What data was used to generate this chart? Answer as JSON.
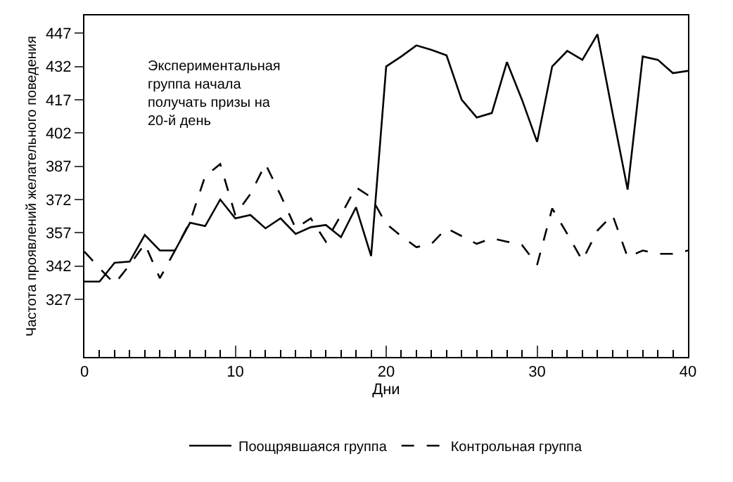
{
  "chart_data": {
    "type": "line",
    "xlabel": "Дни",
    "ylabel": "Частота проявлений желательного поведения",
    "x": [
      0,
      1,
      2,
      3,
      4,
      5,
      6,
      7,
      8,
      9,
      10,
      11,
      12,
      13,
      14,
      15,
      16,
      17,
      18,
      19,
      20,
      21,
      22,
      23,
      24,
      25,
      26,
      27,
      28,
      29,
      30,
      31,
      32,
      33,
      34,
      35,
      36,
      37,
      38,
      39,
      40
    ],
    "series": [
      {
        "name": "Поощрявшаяся группа",
        "color": "#000000",
        "line_style": "solid",
        "values": [
          335,
          335,
          343.5,
          344,
          356,
          349,
          349,
          361.5,
          360,
          372,
          363.5,
          365,
          359,
          363.5,
          356.5,
          359.5,
          360.5,
          355,
          368.5,
          346.5,
          432,
          436.5,
          441.5,
          439.5,
          437,
          417,
          409,
          411,
          434,
          417,
          398,
          432,
          439,
          435,
          446.5,
          411,
          376.5,
          436.5,
          435,
          429,
          430
        ]
      },
      {
        "name": "Контрольная группа",
        "color": "#000000",
        "line_style": "dashed",
        "values": [
          348.5,
          341,
          334,
          342.5,
          352,
          336.5,
          349,
          362,
          382.5,
          388,
          365,
          374.5,
          388,
          374,
          359,
          363.5,
          353,
          365,
          377.5,
          373,
          361,
          355.5,
          350.5,
          352,
          359,
          355.5,
          352,
          354.5,
          353,
          351.5,
          342.5,
          368,
          356.5,
          344.5,
          358,
          365,
          346,
          349,
          347.5,
          347.5,
          349
        ]
      }
    ],
    "xlim": [
      0,
      40
    ],
    "xticks": [
      0,
      10,
      20,
      30,
      40
    ],
    "ylim": [
      301,
      455
    ],
    "yticks": [
      327,
      342,
      357,
      372,
      387,
      402,
      417,
      432,
      447
    ],
    "annotations": [
      "Экспериментальная\nгруппа начала\nполучать призы на\n20-й день"
    ],
    "legend": "bottom",
    "marker": "none"
  }
}
